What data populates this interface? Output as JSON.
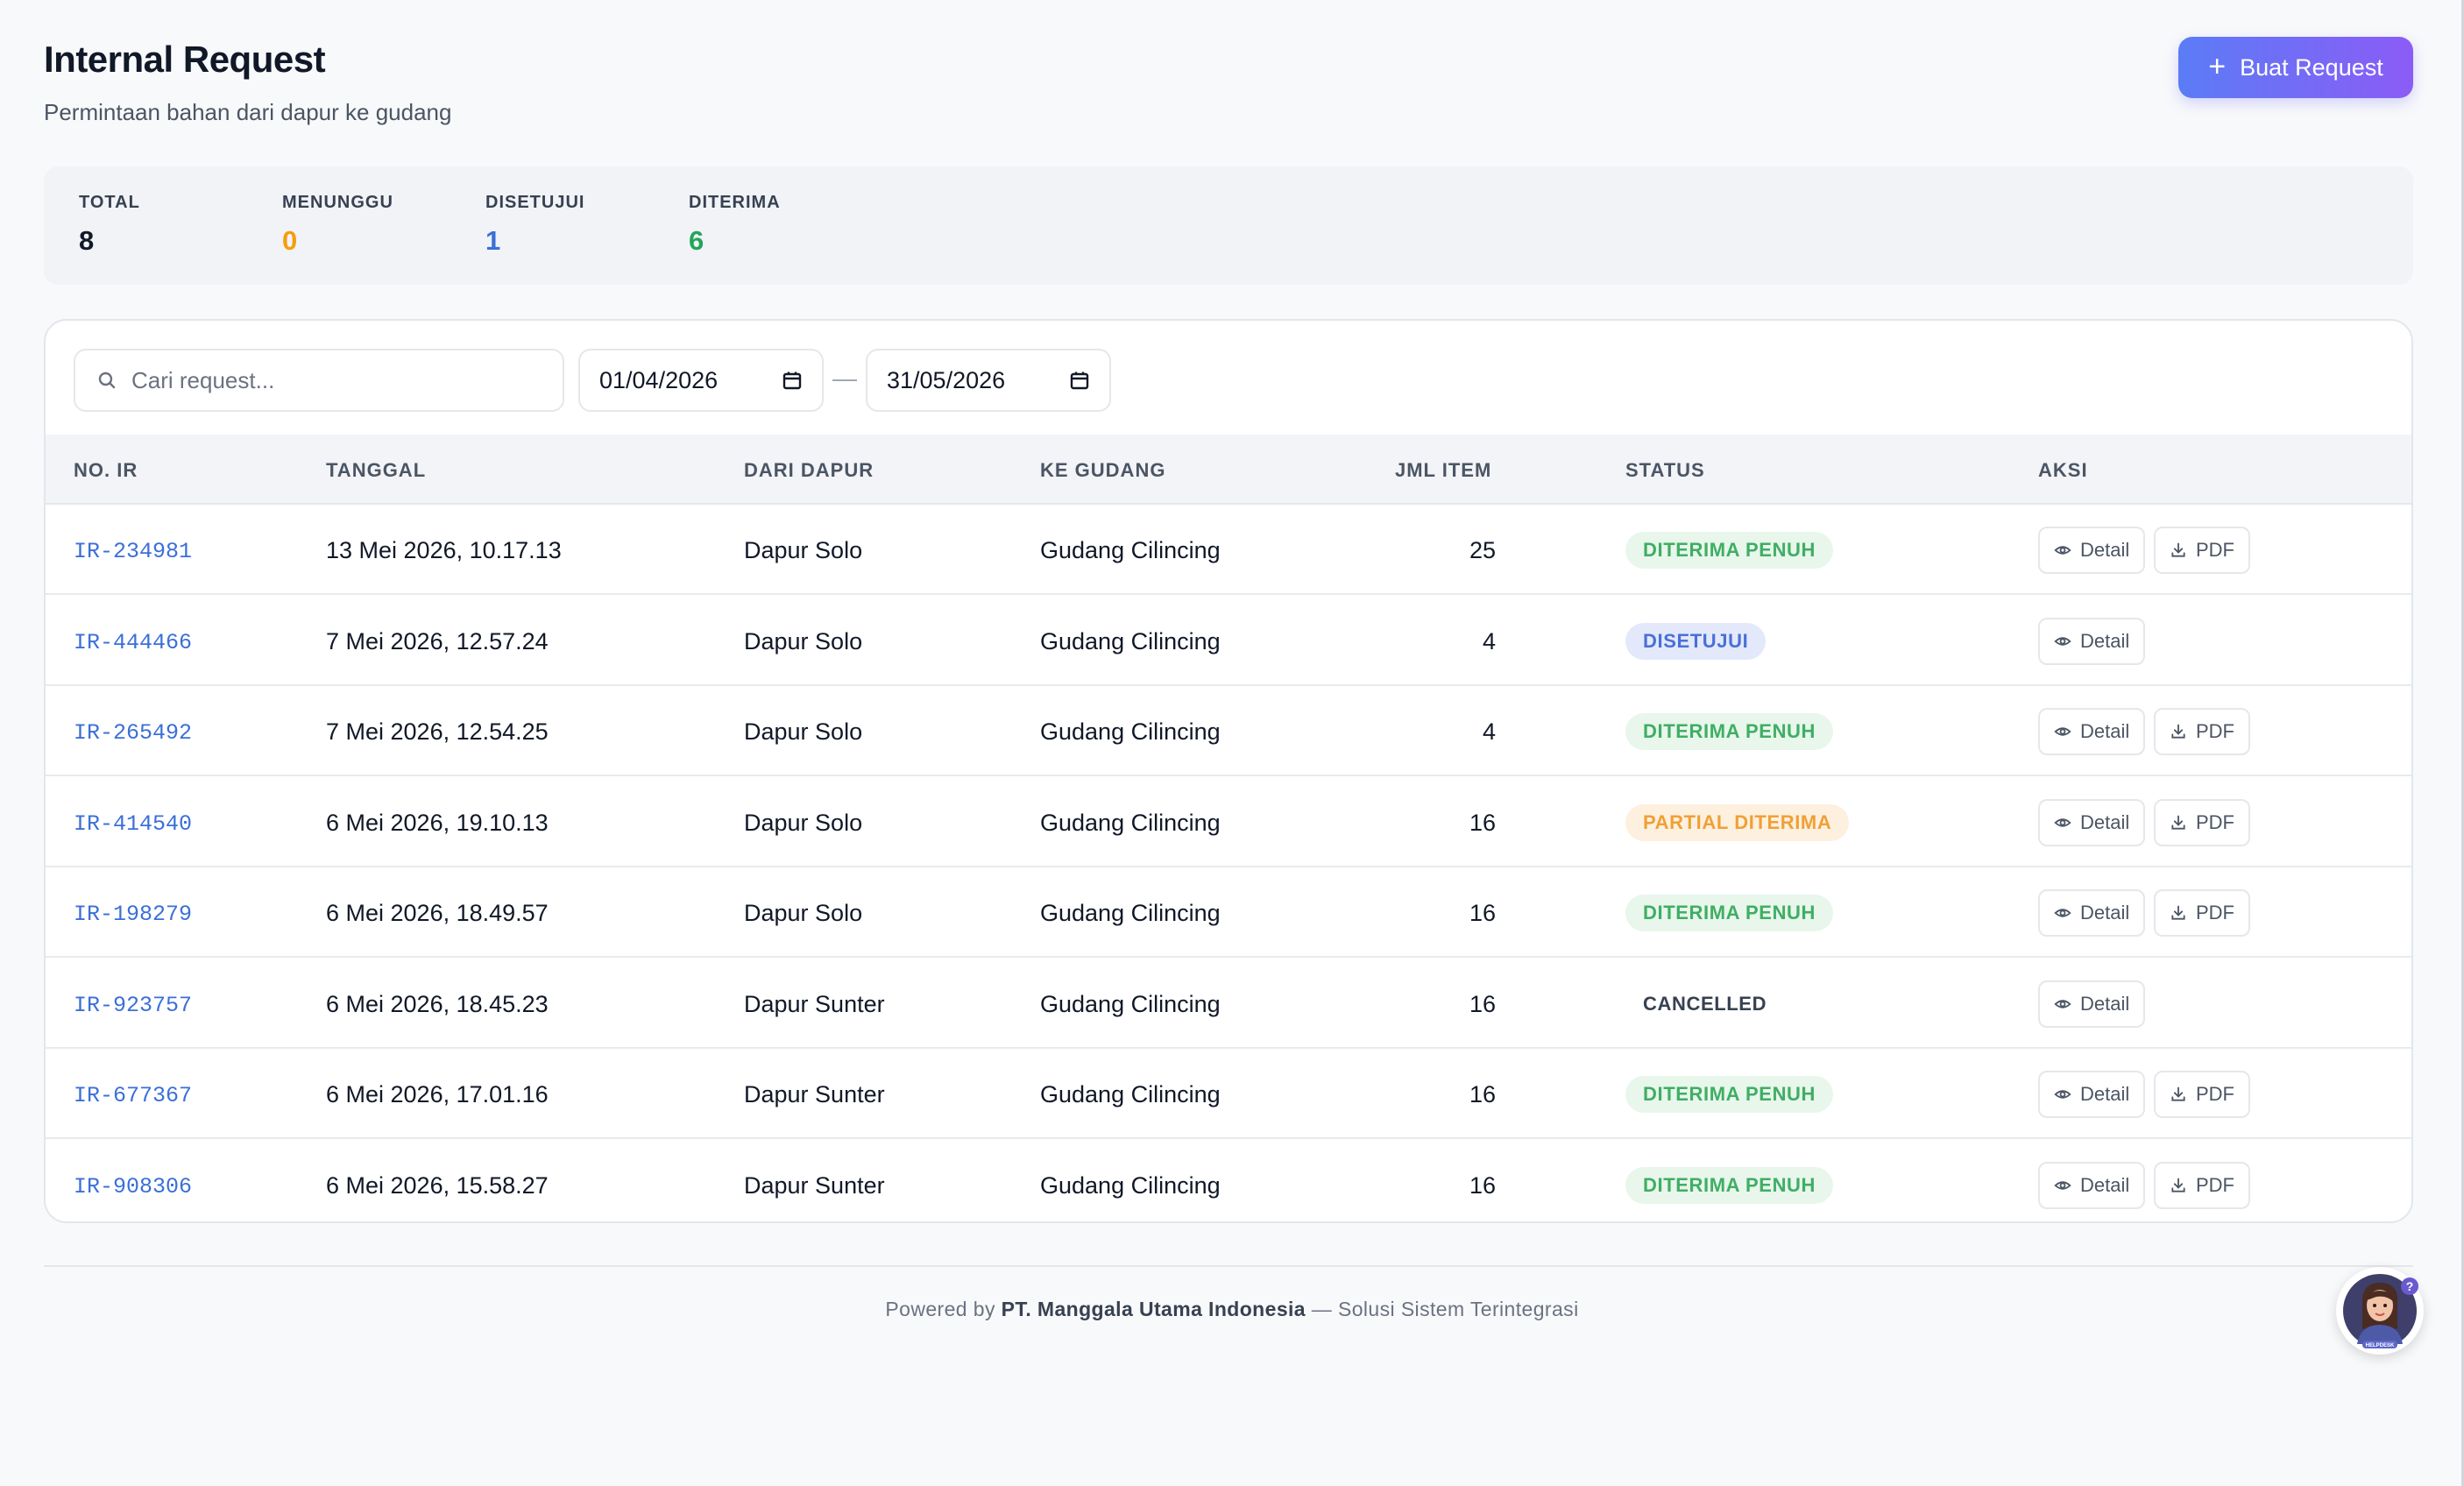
{
  "header": {
    "title": "Internal Request",
    "subtitle": "Permintaan bahan dari dapur ke gudang",
    "create_button": "Buat Request"
  },
  "stats": [
    {
      "label": "TOTAL",
      "value": "8",
      "color": "#111827"
    },
    {
      "label": "MENUNGGU",
      "value": "0",
      "color": "#f59e0b"
    },
    {
      "label": "DISETUJUI",
      "value": "1",
      "color": "#3b6fd9"
    },
    {
      "label": "DITERIMA",
      "value": "6",
      "color": "#22a55a"
    }
  ],
  "filters": {
    "search_placeholder": "Cari request...",
    "date_from": "01/04/2026",
    "date_separator": "—",
    "date_to": "31/05/2026"
  },
  "table": {
    "columns": [
      "NO. IR",
      "TANGGAL",
      "DARI DAPUR",
      "KE GUDANG",
      "JML ITEM",
      "STATUS",
      "AKSI"
    ],
    "rows": [
      {
        "no": "IR-234981",
        "date": "13 Mei 2026, 10.17.13",
        "from": "Dapur Solo",
        "to": "Gudang Cilincing",
        "qty": "25",
        "status": "DITERIMA PENUH",
        "status_kind": "received",
        "pdf": true
      },
      {
        "no": "IR-444466",
        "date": "7 Mei 2026, 12.57.24",
        "from": "Dapur Solo",
        "to": "Gudang Cilincing",
        "qty": "4",
        "status": "DISETUJUI",
        "status_kind": "approved",
        "pdf": false
      },
      {
        "no": "IR-265492",
        "date": "7 Mei 2026, 12.54.25",
        "from": "Dapur Solo",
        "to": "Gudang Cilincing",
        "qty": "4",
        "status": "DITERIMA PENUH",
        "status_kind": "received",
        "pdf": true
      },
      {
        "no": "IR-414540",
        "date": "6 Mei 2026, 19.10.13",
        "from": "Dapur Solo",
        "to": "Gudang Cilincing",
        "qty": "16",
        "status": "PARTIAL DITERIMA",
        "status_kind": "partial",
        "pdf": true
      },
      {
        "no": "IR-198279",
        "date": "6 Mei 2026, 18.49.57",
        "from": "Dapur Solo",
        "to": "Gudang Cilincing",
        "qty": "16",
        "status": "DITERIMA PENUH",
        "status_kind": "received",
        "pdf": true
      },
      {
        "no": "IR-923757",
        "date": "6 Mei 2026, 18.45.23",
        "from": "Dapur Sunter",
        "to": "Gudang Cilincing",
        "qty": "16",
        "status": "CANCELLED",
        "status_kind": "cancelled",
        "pdf": false
      },
      {
        "no": "IR-677367",
        "date": "6 Mei 2026, 17.01.16",
        "from": "Dapur Sunter",
        "to": "Gudang Cilincing",
        "qty": "16",
        "status": "DITERIMA PENUH",
        "status_kind": "received",
        "pdf": true
      },
      {
        "no": "IR-908306",
        "date": "6 Mei 2026, 15.58.27",
        "from": "Dapur Sunter",
        "to": "Gudang Cilincing",
        "qty": "16",
        "status": "DITERIMA PENUH",
        "status_kind": "received",
        "pdf": true
      }
    ],
    "detail_label": "Detail",
    "pdf_label": "PDF"
  },
  "status_colors": {
    "received": {
      "bg": "#e8f6ec",
      "fg": "#3fae63"
    },
    "approved": {
      "bg": "#e3e9fb",
      "fg": "#4a6fd8"
    },
    "partial": {
      "bg": "#fdf0df",
      "fg": "#f0a035"
    },
    "cancelled": {
      "bg": "transparent",
      "fg": "#374151"
    }
  },
  "footer": {
    "prefix": "Powered by",
    "company": "PT. Manggala Utama Indonesia",
    "suffix": "— Solusi Sistem Terintegrasi"
  },
  "helpdesk": {
    "badge": "?",
    "caption": "HELPDESK",
    "icon": "helpdesk-avatar-icon"
  }
}
